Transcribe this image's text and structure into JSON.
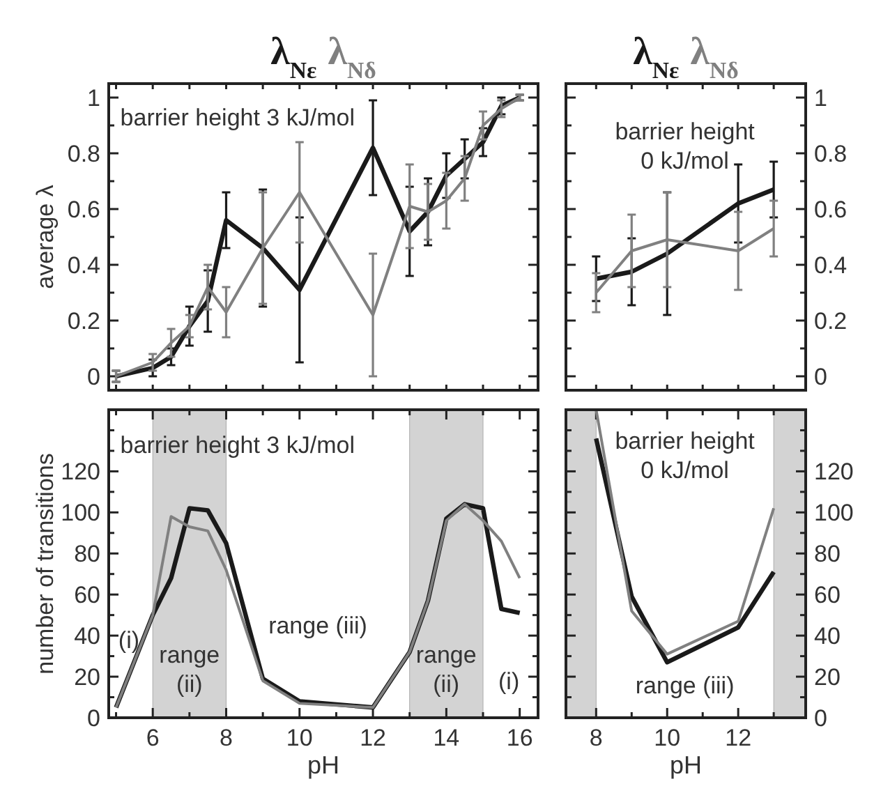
{
  "chart_data": [
    {
      "type": "line",
      "ylabel": "average λ",
      "legend": "top",
      "tick_labels": "y",
      "xlim": [
        4.8,
        16.5
      ],
      "ylim": [
        -0.05,
        1.05
      ],
      "xticks": [
        {
          "value": 5,
          "label": null
        },
        {
          "value": 6,
          "label": null
        },
        {
          "value": 7,
          "label": null
        },
        {
          "value": 8,
          "label": null
        },
        {
          "value": 9,
          "label": null
        },
        {
          "value": 10,
          "label": null
        },
        {
          "value": 11,
          "label": null
        },
        {
          "value": 12,
          "label": null
        },
        {
          "value": 13,
          "label": null
        },
        {
          "value": 14,
          "label": null
        },
        {
          "value": 15,
          "label": null
        },
        {
          "value": 16,
          "label": null
        }
      ],
      "yticks": [
        0,
        {
          "value": 0.1,
          "label": null
        },
        0.2,
        {
          "value": 0.3,
          "label": null
        },
        0.4,
        {
          "value": 0.5,
          "label": null
        },
        0.6,
        {
          "value": 0.7,
          "label": null
        },
        0.8,
        {
          "value": 0.9,
          "label": null
        },
        1
      ],
      "annotations": [
        "barrier height 3 kJ/mol"
      ],
      "series": [
        {
          "name": "λ$_{Nε}$",
          "color": "#1a1a1a",
          "x": [
            5,
            6,
            6.5,
            7,
            7.5,
            8,
            9,
            10,
            12,
            13,
            13.5,
            14,
            14.5,
            15,
            15.5,
            16
          ],
          "values": [
            0,
            0.03,
            0.07,
            0.18,
            0.27,
            0.56,
            0.46,
            0.31,
            0.82,
            0.52,
            0.59,
            0.72,
            0.78,
            0.84,
            0.97,
            1.0
          ],
          "errors": [
            0.02,
            0.03,
            0.03,
            0.07,
            0.11,
            0.1,
            0.21,
            0.26,
            0.17,
            0.16,
            0.12,
            0.08,
            0.07,
            0.05,
            0.03,
            0.01
          ]
        },
        {
          "name": "λ$_{Nδ}$",
          "color": "#808080",
          "x": [
            5,
            6,
            6.5,
            7,
            7.5,
            8,
            9,
            10,
            12,
            13,
            13.5,
            14,
            14.5,
            15,
            15.5,
            16
          ],
          "values": [
            0,
            0.05,
            0.12,
            0.18,
            0.32,
            0.23,
            0.46,
            0.66,
            0.22,
            0.61,
            0.59,
            0.63,
            0.71,
            0.9,
            0.96,
            1.0
          ],
          "errors": [
            0.02,
            0.03,
            0.05,
            0.04,
            0.08,
            0.09,
            0.2,
            0.18,
            0.22,
            0.15,
            0.1,
            0.1,
            0.08,
            0.05,
            0.03,
            0.01
          ]
        }
      ]
    },
    {
      "type": "line",
      "legend": "top",
      "tick_labels": "y",
      "xlim": [
        7.15,
        13.9
      ],
      "ylim": [
        -0.05,
        1.05
      ],
      "xticks": [
        {
          "value": 8,
          "label": null
        },
        {
          "value": 9,
          "label": null
        },
        {
          "value": 10,
          "label": null
        },
        {
          "value": 11,
          "label": null
        },
        {
          "value": 12,
          "label": null
        },
        {
          "value": 13,
          "label": null
        }
      ],
      "yticks": [
        0,
        {
          "value": 0.1,
          "label": null
        },
        0.2,
        {
          "value": 0.3,
          "label": null
        },
        0.4,
        {
          "value": 0.5,
          "label": null
        },
        0.6,
        {
          "value": 0.7,
          "label": null
        },
        0.8,
        {
          "value": 0.9,
          "label": null
        },
        1
      ],
      "annotations": [
        "barrier height\n0 kJ/mol"
      ],
      "series": [
        {
          "name": "λ$_{Nε}$",
          "color": "#1a1a1a",
          "x": [
            8,
            9,
            10,
            12,
            13
          ],
          "values": [
            0.35,
            0.375,
            0.44,
            0.62,
            0.67
          ],
          "errors": [
            0.08,
            0.12,
            0.22,
            0.14,
            0.1
          ]
        },
        {
          "name": "λ$_{Nδ}$",
          "color": "#808080",
          "x": [
            8,
            9,
            10,
            12,
            13
          ],
          "values": [
            0.3,
            0.45,
            0.49,
            0.45,
            0.53
          ],
          "errors": [
            0.07,
            0.13,
            0.17,
            0.14,
            0.1
          ]
        }
      ]
    },
    {
      "type": "line",
      "xlabel": "pH",
      "ylabel": "number of transitions",
      "xlim": [
        4.8,
        16.5
      ],
      "ylim": [
        0,
        150
      ],
      "xticks": [
        {
          "value": 5,
          "label": null
        },
        6,
        {
          "value": 7,
          "label": null
        },
        8,
        {
          "value": 9,
          "label": null
        },
        10,
        {
          "value": 11,
          "label": null
        },
        12,
        {
          "value": 13,
          "label": null
        },
        14,
        {
          "value": 15,
          "label": null
        },
        16
      ],
      "yticks": [
        0,
        {
          "value": 10,
          "label": null
        },
        20,
        {
          "value": 30,
          "label": null
        },
        40,
        {
          "value": 50,
          "label": null
        },
        60,
        {
          "value": 70,
          "label": null
        },
        80,
        {
          "value": 90,
          "label": null
        },
        100,
        {
          "value": 110,
          "label": null
        },
        120,
        {
          "value": 130,
          "label": null
        },
        {
          "value": 140,
          "label": null
        }
      ],
      "bands": [
        {
          "axis": "x",
          "from": 6,
          "to": 8,
          "color": "#d3d3d3"
        },
        {
          "axis": "x",
          "from": 13,
          "to": 15,
          "color": "#d3d3d3"
        }
      ],
      "annotations": [
        "barrier height 3 kJ/mol",
        "(i)",
        "range\n(ii)",
        "range (iii)",
        "range\n(ii)",
        "(i)"
      ],
      "series": [
        {
          "color": "#1a1a1a",
          "x": [
            5,
            6,
            6.5,
            7,
            7.5,
            8,
            9,
            10,
            12,
            13,
            13.5,
            14,
            14.5,
            15,
            15.5,
            16
          ],
          "values": [
            5,
            50,
            68,
            102,
            101,
            85,
            19,
            8,
            5,
            32,
            57,
            97,
            104,
            102,
            53,
            51
          ]
        },
        {
          "color": "#808080",
          "x": [
            5,
            6,
            6.5,
            7,
            7.5,
            8,
            9,
            10,
            12,
            13,
            13.5,
            14,
            14.5,
            15,
            15.5,
            16
          ],
          "values": [
            5,
            50,
            98,
            93,
            91,
            72,
            18,
            7,
            5,
            32,
            57,
            96,
            104,
            96,
            86,
            68
          ]
        }
      ]
    },
    {
      "type": "line",
      "xlabel": "pH",
      "xlim": [
        7.15,
        13.9
      ],
      "ylim": [
        0,
        150
      ],
      "xticks": [
        8,
        {
          "value": 9,
          "label": null
        },
        10,
        {
          "value": 11,
          "label": null
        },
        12,
        {
          "value": 13,
          "label": null
        }
      ],
      "yticks": [
        0,
        {
          "value": 10,
          "label": null
        },
        20,
        {
          "value": 30,
          "label": null
        },
        40,
        {
          "value": 50,
          "label": null
        },
        60,
        {
          "value": 70,
          "label": null
        },
        80,
        {
          "value": 90,
          "label": null
        },
        100,
        {
          "value": 110,
          "label": null
        },
        120,
        {
          "value": 130,
          "label": null
        },
        {
          "value": 140,
          "label": null
        }
      ],
      "bands": [
        {
          "axis": "x",
          "from": 7.15,
          "to": 8,
          "color": "#d3d3d3"
        },
        {
          "axis": "x",
          "from": 13,
          "to": 13.9,
          "color": "#d3d3d3"
        }
      ],
      "annotations": [
        "barrier height\n0 kJ/mol",
        "range (iii)"
      ],
      "series": [
        {
          "color": "#1a1a1a",
          "x": [
            8,
            9,
            10,
            12,
            13
          ],
          "values": [
            136,
            59,
            27,
            44,
            71
          ]
        },
        {
          "color": "#808080",
          "x": [
            8,
            9,
            10,
            12,
            13
          ],
          "values": [
            150,
            52,
            31,
            47,
            102
          ]
        }
      ]
    }
  ]
}
